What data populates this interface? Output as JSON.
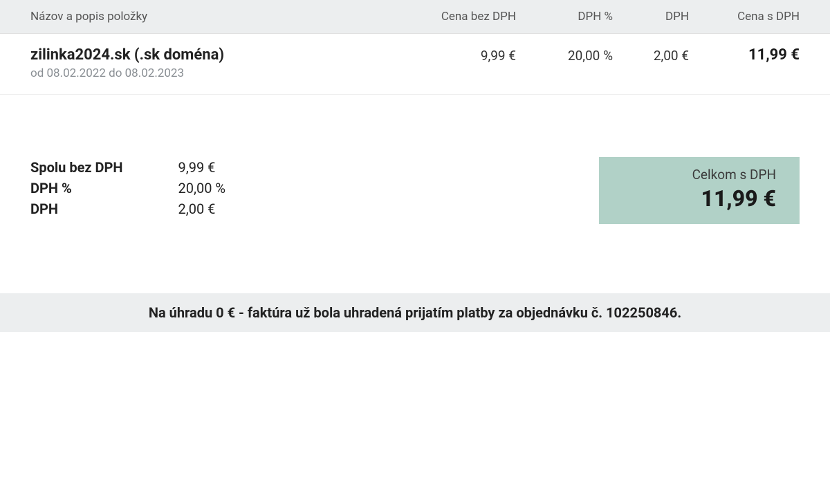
{
  "table": {
    "headers": {
      "name": "Názov a popis položky",
      "price_no_vat": "Cena bez DPH",
      "vat_pct": "DPH %",
      "vat": "DPH",
      "price_with_vat": "Cena s DPH"
    },
    "rows": [
      {
        "title": "zilinka2024.sk (.sk doména)",
        "subtitle": "od 08.02.2022 do 08.02.2023",
        "price_no_vat": "9,99 €",
        "vat_pct": "20,00 %",
        "vat": "2,00 €",
        "price_with_vat": "11,99 €"
      }
    ]
  },
  "summary": {
    "labels": {
      "subtotal": "Spolu bez DPH",
      "vat_pct": "DPH %",
      "vat": "DPH"
    },
    "values": {
      "subtotal": "9,99 €",
      "vat_pct": "20,00 %",
      "vat": "2,00 €"
    }
  },
  "total_box": {
    "label": "Celkom s DPH",
    "amount": "11,99 €"
  },
  "payment_notice": "Na úhradu 0 € - faktúra už bola uhradená prijatím platby za objednávku č. 102250846.",
  "colors": {
    "header_bg": "#eceeef",
    "total_box_bg": "#b1d1c7",
    "text_primary": "#222222",
    "text_muted": "#8a8f94"
  }
}
